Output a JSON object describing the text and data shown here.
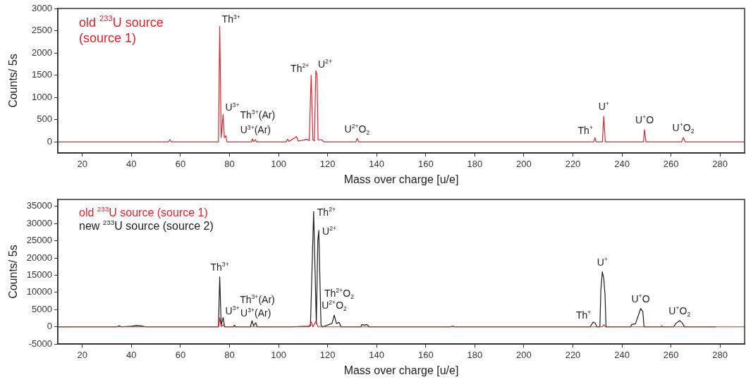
{
  "chart_data": [
    {
      "type": "line",
      "xlabel": "Mass over charge [u/e]",
      "ylabel": "Counts/ 5s",
      "xlim": [
        10,
        290
      ],
      "xticks": [
        20,
        40,
        60,
        80,
        100,
        120,
        140,
        160,
        180,
        200,
        220,
        240,
        260,
        280
      ],
      "ylim": [
        -250,
        3000
      ],
      "yticks": [
        0,
        500,
        1000,
        1500,
        2000,
        2500,
        3000
      ],
      "legend": "top left",
      "series": [
        {
          "name": "old $^{233}$U source (source 1)",
          "color": "#e8202a",
          "x": [
            10,
            55,
            55.7,
            56.3,
            75.5,
            76,
            76.6,
            77.4,
            77.9,
            78.5,
            79,
            89,
            89.3,
            89.8,
            90.6,
            91,
            103,
            103.7,
            104.3,
            107.3,
            108,
            110,
            111.5,
            112.5,
            113.3,
            114,
            114.6,
            115.2,
            115.7,
            116.1,
            117.5,
            118.5,
            131.5,
            132,
            132.7,
            228.5,
            229,
            229.5,
            232,
            232.6,
            233.2,
            248.8,
            249.2,
            249.8,
            264.3,
            265,
            265.8,
            290
          ],
          "values": [
            0,
            0,
            50,
            0,
            0,
            2600,
            100,
            620,
            100,
            140,
            0,
            0,
            70,
            10,
            50,
            0,
            0,
            60,
            10,
            120,
            20,
            40,
            60,
            30,
            1500,
            50,
            20,
            1600,
            1500,
            50,
            50,
            0,
            0,
            80,
            0,
            0,
            100,
            0,
            0,
            580,
            0,
            0,
            280,
            0,
            0,
            100,
            0,
            0
          ]
        }
      ],
      "annotations": [
        {
          "text": "Th$^{3+}$",
          "x": 76,
          "y": 2600
        },
        {
          "text": "U$^{3+}$",
          "x": 77.4,
          "y": 620
        },
        {
          "text": "U$^{3+}$(Ar)",
          "x": 90.6,
          "y": 50
        },
        {
          "text": "Th$^{3+}$(Ar)",
          "x": 89.3,
          "y": 70
        },
        {
          "text": "Th$^{2+}$",
          "x": 113.3,
          "y": 1500
        },
        {
          "text": "U$^{2+}$",
          "x": 115.2,
          "y": 1600
        },
        {
          "text": "U$^{2+}$O$_{2}$",
          "x": 132,
          "y": 80
        },
        {
          "text": "Th$^{+}$",
          "x": 229,
          "y": 100
        },
        {
          "text": "U$^{+}$",
          "x": 232.6,
          "y": 580
        },
        {
          "text": "U$^{+}$O",
          "x": 249.2,
          "y": 280
        },
        {
          "text": "U$^{+}$O$_{2}$",
          "x": 265,
          "y": 100
        }
      ]
    },
    {
      "type": "line",
      "xlabel": "Mass over charge [u/e]",
      "ylabel": "Counts/ 5s",
      "xlim": [
        10,
        290
      ],
      "xticks": [
        20,
        40,
        60,
        80,
        100,
        120,
        140,
        160,
        180,
        200,
        220,
        240,
        260,
        280
      ],
      "ylim": [
        -5000,
        37000
      ],
      "yticks": [
        -5000,
        0,
        5000,
        10000,
        15000,
        20000,
        25000,
        30000,
        35000
      ],
      "legend": "top left",
      "series": [
        {
          "name": "old $^{233}$U source (source 1)",
          "color": "#e8202a",
          "x": [
            10,
            75.5,
            76,
            76.6,
            77.4,
            78,
            112.5,
            113.3,
            114,
            115.2,
            116.1,
            117,
            232,
            232.6,
            233.2,
            290
          ],
          "values": [
            0,
            0,
            2600,
            100,
            600,
            0,
            0,
            1500,
            0,
            1600,
            0,
            0,
            0,
            600,
            0,
            0
          ]
        },
        {
          "name": "new $^{233}$U source (source 2)",
          "color": "#1a1a1a",
          "x": [
            10,
            34,
            35,
            36,
            40,
            42,
            44,
            46,
            75.5,
            76,
            76.6,
            77.4,
            78,
            81.5,
            82,
            82.5,
            88.5,
            89.2,
            89.8,
            90.7,
            91.3,
            105,
            112,
            113,
            114.3,
            115.4,
            116,
            116.4,
            117.3,
            118,
            121.8,
            122.7,
            123.6,
            124.7,
            125.5,
            133.5,
            134,
            135,
            136,
            137,
            170,
            171,
            172,
            227,
            228.3,
            229.2,
            229.7,
            231,
            231.4,
            232,
            232.6,
            233.1,
            233.5,
            243.5,
            244,
            245.5,
            246.8,
            247.6,
            248.5,
            249,
            256,
            256.2,
            256.5,
            261,
            262,
            263.5,
            264.5,
            265.5,
            278
          ],
          "values": [
            0,
            0,
            300,
            0,
            200,
            400,
            300,
            0,
            0,
            14500,
            500,
            2700,
            0,
            0,
            500,
            0,
            0,
            1800,
            300,
            1200,
            0,
            0,
            200,
            300,
            33500,
            1000,
            25000,
            28000,
            500,
            0,
            1000,
            3400,
            1000,
            1300,
            0,
            0,
            700,
            500,
            700,
            0,
            0,
            200,
            0,
            0,
            1400,
            1000,
            0,
            0,
            10700,
            16000,
            14000,
            9200,
            0,
            0,
            700,
            900,
            3600,
            5300,
            4500,
            0,
            0,
            300,
            0,
            0,
            1000,
            1800,
            1200,
            0,
            0
          ]
        }
      ],
      "annotations": [
        {
          "text": "Th$^{3+}$",
          "x": 76,
          "y": 14500
        },
        {
          "text": "U$^{3+}$",
          "x": 77.4,
          "y": 2700
        },
        {
          "text": "U$^{3+}$(Ar)",
          "x": 90.7,
          "y": 1200
        },
        {
          "text": "Th$^{3+}$(Ar)",
          "x": 89.2,
          "y": 1800
        },
        {
          "text": "Th$^{2+}$",
          "x": 114.3,
          "y": 33500
        },
        {
          "text": "U$^{2+}$",
          "x": 116.4,
          "y": 28000
        },
        {
          "text": "U$^{2+}$O$_{2}$",
          "x": 122.7,
          "y": 3400
        },
        {
          "text": "Th$^{2+}$O$_{2}$",
          "x": 124.7,
          "y": 1300
        },
        {
          "text": "Th$^{+}$",
          "x": 228.3,
          "y": 1400
        },
        {
          "text": "U$^{+}$",
          "x": 232,
          "y": 16000
        },
        {
          "text": "U$^{+}$O",
          "x": 247.6,
          "y": 5300
        },
        {
          "text": "U$^{+}$O$_{2}$",
          "x": 263.5,
          "y": 1800
        }
      ]
    }
  ]
}
